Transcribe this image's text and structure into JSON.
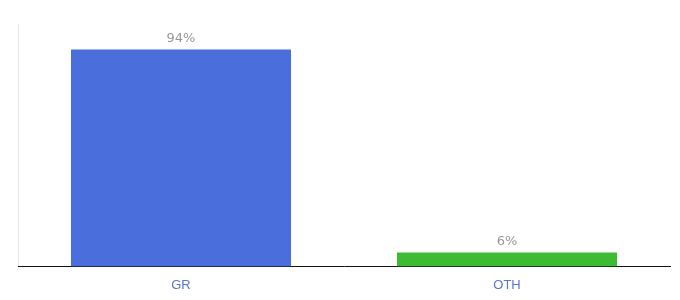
{
  "chart_data": {
    "type": "bar",
    "categories": [
      "GR",
      "OTH"
    ],
    "values": [
      94,
      6
    ],
    "value_labels": [
      "94%",
      "6%"
    ],
    "colors": [
      "#4a6fdc",
      "#3dbb35"
    ],
    "ylim": [
      0,
      105
    ],
    "grid": false,
    "data_labels": true,
    "tick_labels": "x"
  }
}
